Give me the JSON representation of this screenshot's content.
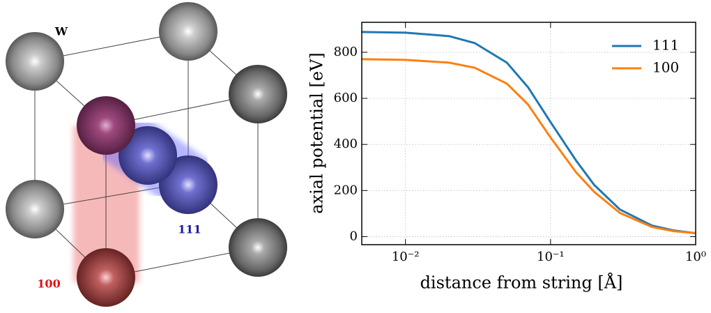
{
  "diagram": {
    "element": "W",
    "direction_a": "111",
    "direction_b": "100"
  },
  "chart_data": {
    "type": "line",
    "xlabel": "distance from string [Å]",
    "ylabel": "axial potential [eV]",
    "log_x": true,
    "grid": true,
    "legend": "upper right",
    "x": [
      0.005,
      0.01,
      0.02,
      0.03,
      0.05,
      0.07,
      0.1,
      0.15,
      0.2,
      0.3,
      0.5,
      0.7,
      1.0
    ],
    "series": [
      {
        "name": "111",
        "color": "#1f77b4",
        "values": [
          888,
          885,
          870,
          840,
          755,
          648,
          497,
          330,
          224,
          118,
          48,
          27,
          15
        ]
      },
      {
        "name": "100",
        "color": "#ff7f0e",
        "values": [
          770,
          767,
          755,
          733,
          664,
          573,
          430,
          279,
          194,
          103,
          42,
          24,
          15
        ]
      }
    ],
    "xlim": [
      0.005,
      1.0
    ],
    "ylim": [
      -35,
      930
    ],
    "xticks": [
      {
        "value": 0.01,
        "label": "10⁻²"
      },
      {
        "value": 0.1,
        "label": "10⁻¹"
      },
      {
        "value": 1,
        "label": "10⁰"
      }
    ],
    "yticks": [
      0,
      200,
      400,
      600,
      800
    ]
  }
}
